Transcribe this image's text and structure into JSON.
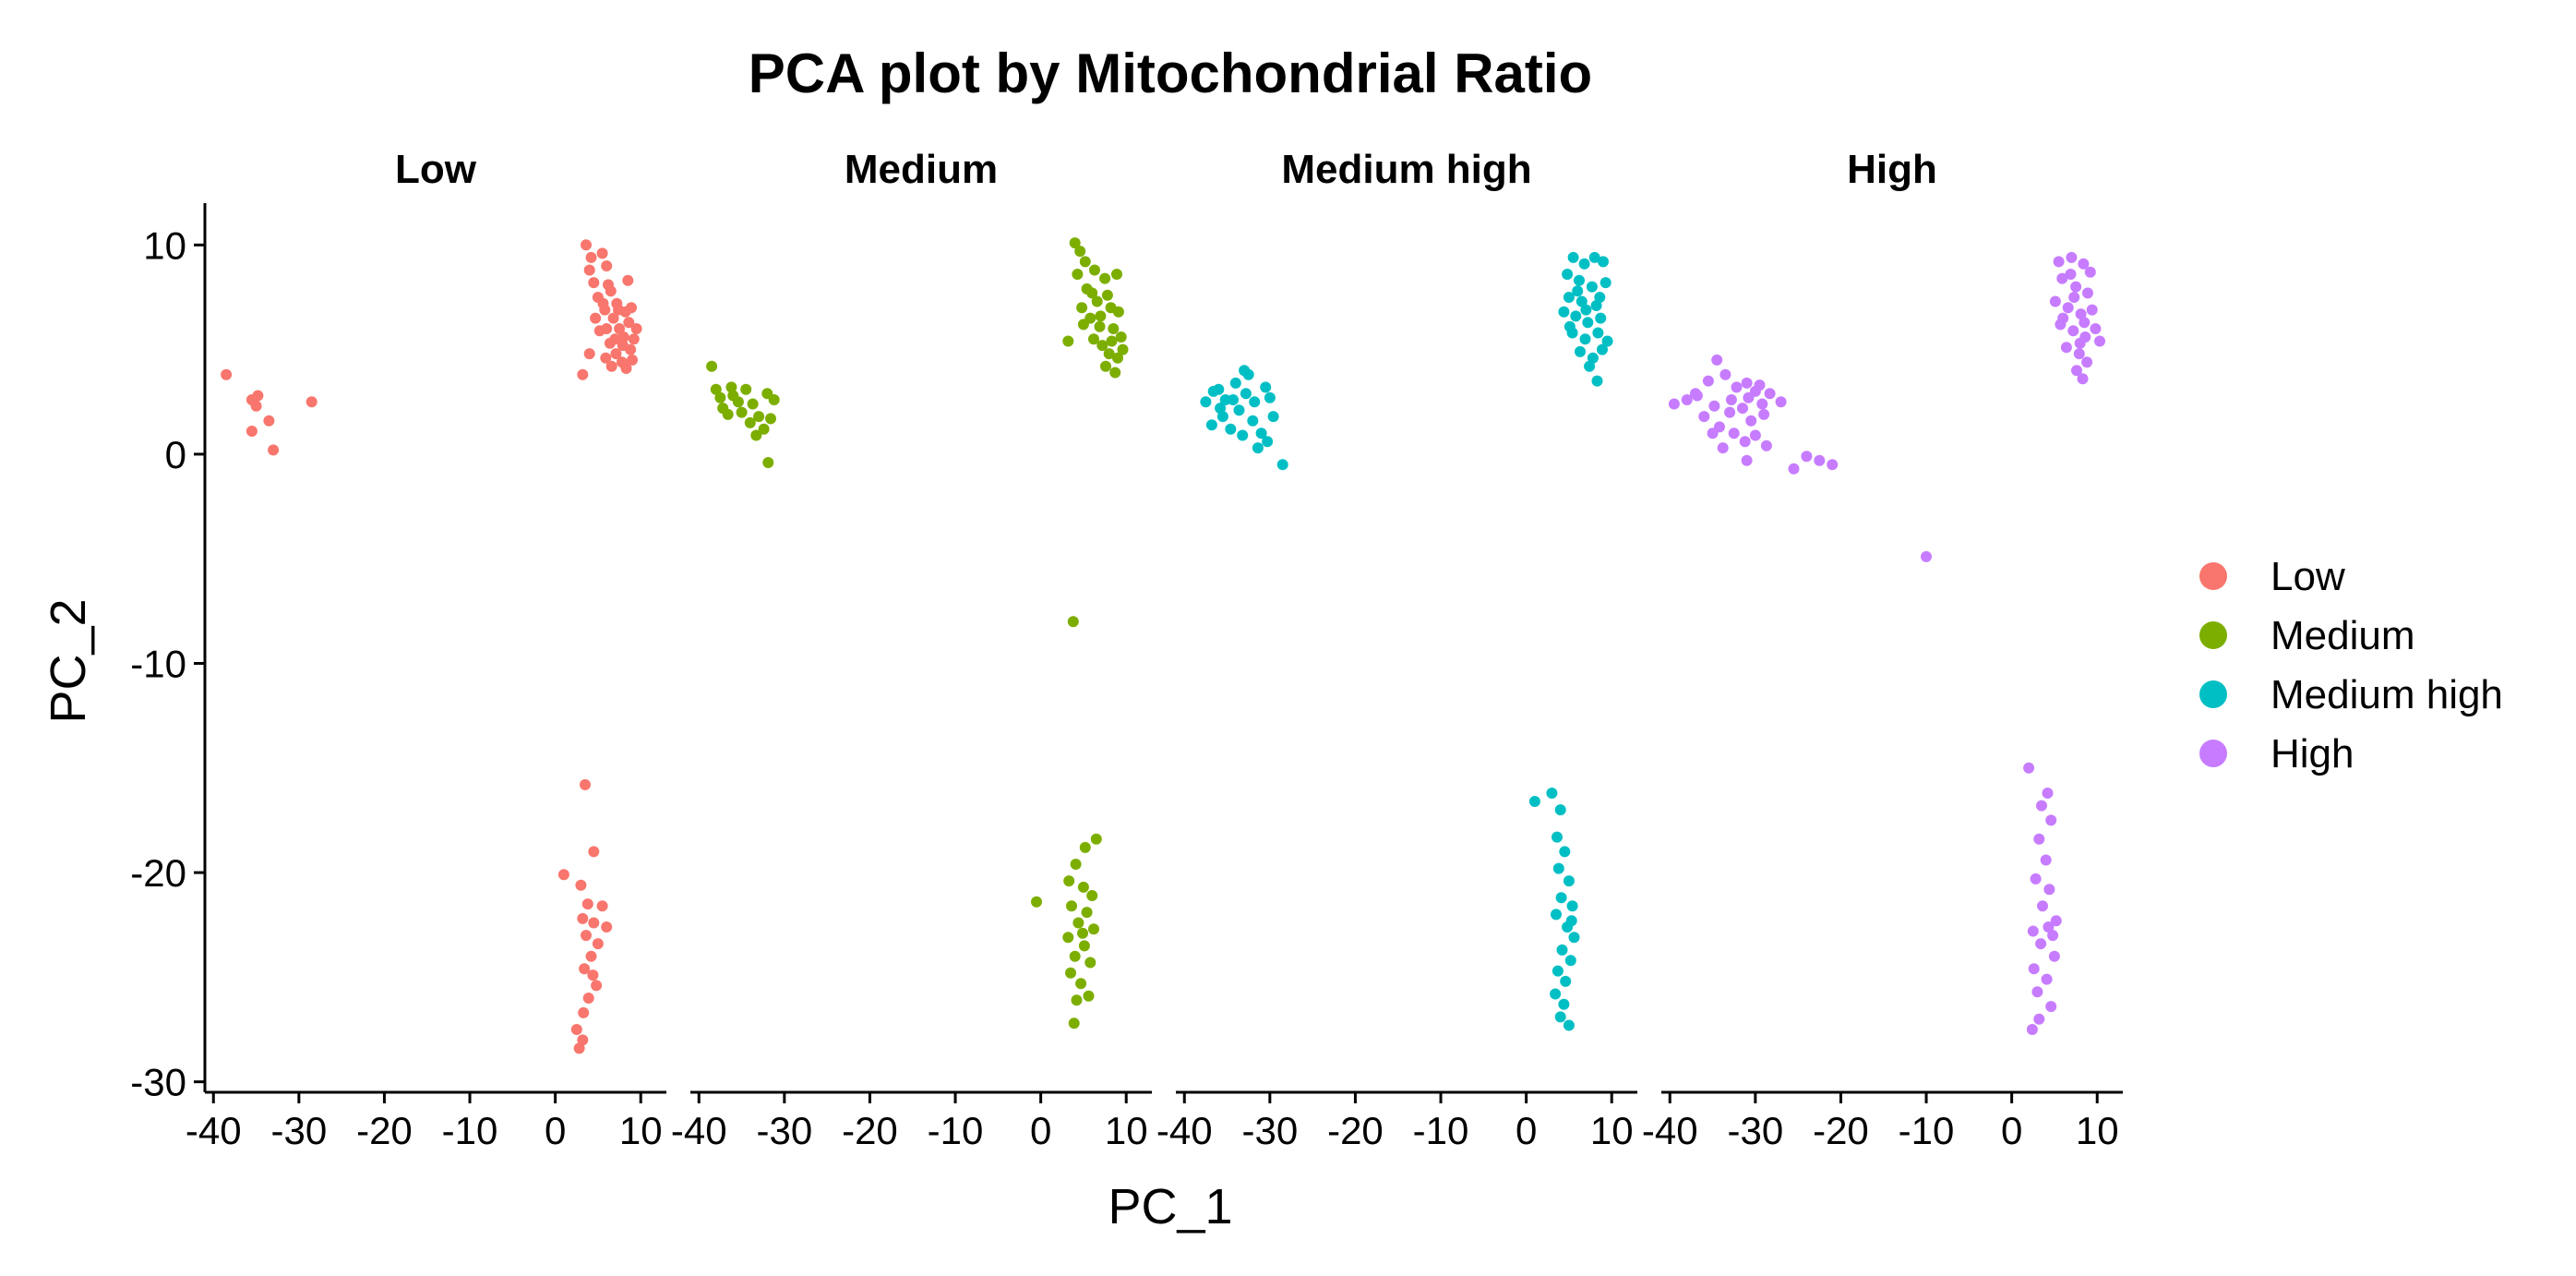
{
  "chart_data": {
    "type": "scatter",
    "title": "PCA plot by Mitochondrial Ratio",
    "xlabel": "PC_1",
    "ylabel": "PC_2",
    "xlim": [
      -41,
      13
    ],
    "ylim": [
      -30.5,
      12
    ],
    "xticks": [
      -40,
      -30,
      -20,
      -10,
      0,
      10
    ],
    "yticks": [
      10,
      0,
      -10,
      -20,
      -30
    ],
    "grid": false,
    "legend_position": "right",
    "facets": [
      {
        "name": "Low",
        "color": "#F8766D",
        "points": [
          [
            -38.5,
            3.8
          ],
          [
            -35.5,
            2.6
          ],
          [
            -35,
            2.3
          ],
          [
            -34.8,
            2.8
          ],
          [
            -35.5,
            1.1
          ],
          [
            -33.5,
            1.6
          ],
          [
            -33,
            0.2
          ],
          [
            -28.5,
            2.5
          ],
          [
            3.6,
            10.0
          ],
          [
            4.2,
            9.4
          ],
          [
            4.0,
            8.8
          ],
          [
            5.5,
            9.6
          ],
          [
            6.0,
            9.0
          ],
          [
            4.5,
            8.2
          ],
          [
            5.0,
            7.5
          ],
          [
            6.5,
            7.8
          ],
          [
            7.2,
            7.2
          ],
          [
            8.5,
            8.3
          ],
          [
            5.8,
            6.9
          ],
          [
            6.8,
            6.5
          ],
          [
            7.5,
            6.0
          ],
          [
            8.0,
            5.6
          ],
          [
            8.8,
            5.0
          ],
          [
            9.2,
            5.5
          ],
          [
            6.4,
            5.3
          ],
          [
            7.1,
            4.8
          ],
          [
            7.8,
            4.4
          ],
          [
            8.3,
            4.1
          ],
          [
            6.0,
            6.0
          ],
          [
            7.4,
            6.9
          ],
          [
            8.6,
            6.3
          ],
          [
            9.5,
            6.0
          ],
          [
            5.2,
            5.9
          ],
          [
            4.0,
            4.8
          ],
          [
            3.2,
            3.8
          ],
          [
            6.6,
            4.2
          ],
          [
            9.0,
            4.5
          ],
          [
            5.6,
            7.2
          ],
          [
            7.9,
            5.2
          ],
          [
            8.9,
            7.0
          ],
          [
            4.7,
            6.5
          ],
          [
            6.2,
            8.1
          ],
          [
            7.0,
            5.5
          ],
          [
            5.9,
            4.6
          ],
          [
            8.2,
            6.8
          ],
          [
            3.5,
            -15.8
          ],
          [
            4.5,
            -19.0
          ],
          [
            1.0,
            -20.1
          ],
          [
            3.0,
            -20.6
          ],
          [
            3.8,
            -21.5
          ],
          [
            5.5,
            -21.6
          ],
          [
            3.2,
            -22.2
          ],
          [
            4.5,
            -22.4
          ],
          [
            6.0,
            -22.6
          ],
          [
            3.6,
            -23.0
          ],
          [
            5.0,
            -23.4
          ],
          [
            4.2,
            -24.0
          ],
          [
            3.4,
            -24.6
          ],
          [
            4.8,
            -25.4
          ],
          [
            3.9,
            -26.0
          ],
          [
            3.3,
            -26.7
          ],
          [
            2.5,
            -27.5
          ],
          [
            3.2,
            -28.0
          ],
          [
            2.8,
            -28.4
          ],
          [
            4.4,
            -24.9
          ]
        ]
      },
      {
        "name": "Medium",
        "color": "#7CAE00",
        "points": [
          [
            -38.5,
            4.2
          ],
          [
            -38.0,
            3.1
          ],
          [
            -37.2,
            2.2
          ],
          [
            -36.0,
            2.8
          ],
          [
            -35.4,
            2.5
          ],
          [
            -34.5,
            3.1
          ],
          [
            -33.7,
            2.4
          ],
          [
            -33.0,
            1.8
          ],
          [
            -32.0,
            2.9
          ],
          [
            -31.2,
            2.6
          ],
          [
            -31.6,
            1.7
          ],
          [
            -34.0,
            1.5
          ],
          [
            -36.6,
            1.9
          ],
          [
            -35.0,
            2.0
          ],
          [
            -32.4,
            1.2
          ],
          [
            -31.9,
            -0.4
          ],
          [
            -33.3,
            0.9
          ],
          [
            -37.5,
            2.7
          ],
          [
            -36.2,
            3.2
          ],
          [
            4.0,
            10.1
          ],
          [
            4.6,
            9.7
          ],
          [
            5.2,
            9.2
          ],
          [
            4.3,
            8.6
          ],
          [
            6.3,
            8.8
          ],
          [
            7.5,
            8.4
          ],
          [
            8.9,
            8.6
          ],
          [
            5.4,
            7.9
          ],
          [
            6.6,
            7.3
          ],
          [
            7.8,
            7.6
          ],
          [
            8.2,
            7.0
          ],
          [
            9.1,
            6.8
          ],
          [
            5.8,
            6.5
          ],
          [
            6.9,
            6.1
          ],
          [
            8.5,
            6.0
          ],
          [
            9.4,
            5.6
          ],
          [
            6.2,
            5.5
          ],
          [
            7.2,
            5.2
          ],
          [
            8.0,
            4.8
          ],
          [
            9.0,
            4.6
          ],
          [
            7.6,
            4.2
          ],
          [
            8.7,
            3.9
          ],
          [
            3.2,
            5.4
          ],
          [
            5.0,
            6.2
          ],
          [
            6.0,
            7.7
          ],
          [
            7.0,
            6.6
          ],
          [
            8.3,
            5.4
          ],
          [
            9.6,
            5.0
          ],
          [
            4.8,
            7.0
          ],
          [
            3.8,
            -8.0
          ],
          [
            6.5,
            -18.4
          ],
          [
            5.2,
            -18.8
          ],
          [
            4.1,
            -19.6
          ],
          [
            3.3,
            -20.4
          ],
          [
            5.0,
            -20.7
          ],
          [
            6.0,
            -21.1
          ],
          [
            -0.5,
            -21.4
          ],
          [
            3.6,
            -21.6
          ],
          [
            5.4,
            -21.9
          ],
          [
            4.4,
            -22.4
          ],
          [
            6.2,
            -22.7
          ],
          [
            3.2,
            -23.1
          ],
          [
            5.1,
            -23.5
          ],
          [
            4.0,
            -24.0
          ],
          [
            5.8,
            -24.3
          ],
          [
            3.5,
            -24.8
          ],
          [
            4.7,
            -25.3
          ],
          [
            5.6,
            -25.9
          ],
          [
            4.2,
            -26.1
          ],
          [
            3.9,
            -27.2
          ],
          [
            4.9,
            -22.9
          ]
        ]
      },
      {
        "name": "Medium high",
        "color": "#00BFC4",
        "points": [
          [
            -37.5,
            2.5
          ],
          [
            -36.6,
            3.0
          ],
          [
            -35.2,
            2.6
          ],
          [
            -34.0,
            3.4
          ],
          [
            -33.0,
            4.0
          ],
          [
            -32.5,
            3.8
          ],
          [
            -31.8,
            2.5
          ],
          [
            -30.5,
            3.2
          ],
          [
            -30.0,
            2.7
          ],
          [
            -33.6,
            2.1
          ],
          [
            -35.5,
            1.8
          ],
          [
            -36.8,
            1.4
          ],
          [
            -34.6,
            1.2
          ],
          [
            -32.0,
            1.6
          ],
          [
            -31.0,
            1.0
          ],
          [
            -30.3,
            0.6
          ],
          [
            -28.5,
            -0.5
          ],
          [
            -31.4,
            0.3
          ],
          [
            -33.2,
            0.9
          ],
          [
            -35.8,
            2.2
          ],
          [
            -32.8,
            2.9
          ],
          [
            -34.3,
            2.6
          ],
          [
            -36.0,
            3.1
          ],
          [
            -29.6,
            1.8
          ],
          [
            5.5,
            9.4
          ],
          [
            6.8,
            9.1
          ],
          [
            8.0,
            9.4
          ],
          [
            9.0,
            9.2
          ],
          [
            4.8,
            8.6
          ],
          [
            6.2,
            8.3
          ],
          [
            7.7,
            8.0
          ],
          [
            9.3,
            8.2
          ],
          [
            5.0,
            7.5
          ],
          [
            6.5,
            7.3
          ],
          [
            8.2,
            7.1
          ],
          [
            4.4,
            6.8
          ],
          [
            5.8,
            6.6
          ],
          [
            7.2,
            6.3
          ],
          [
            8.7,
            6.5
          ],
          [
            5.4,
            5.8
          ],
          [
            6.9,
            5.5
          ],
          [
            8.4,
            5.8
          ],
          [
            9.5,
            5.4
          ],
          [
            6.3,
            4.9
          ],
          [
            7.8,
            4.6
          ],
          [
            8.9,
            5.0
          ],
          [
            7.4,
            4.2
          ],
          [
            8.3,
            3.5
          ],
          [
            5.1,
            6.1
          ],
          [
            6.0,
            7.8
          ],
          [
            7.0,
            6.9
          ],
          [
            8.6,
            7.5
          ],
          [
            1.0,
            -16.6
          ],
          [
            3.0,
            -16.2
          ],
          [
            4.0,
            -17.0
          ],
          [
            3.6,
            -18.3
          ],
          [
            4.5,
            -19.0
          ],
          [
            3.8,
            -19.8
          ],
          [
            5.0,
            -20.4
          ],
          [
            4.1,
            -21.2
          ],
          [
            5.4,
            -21.6
          ],
          [
            3.5,
            -22.0
          ],
          [
            4.8,
            -22.6
          ],
          [
            5.6,
            -23.1
          ],
          [
            4.2,
            -23.7
          ],
          [
            5.2,
            -24.2
          ],
          [
            3.7,
            -24.7
          ],
          [
            4.6,
            -25.2
          ],
          [
            3.4,
            -25.8
          ],
          [
            4.4,
            -26.3
          ],
          [
            5.0,
            -27.3
          ],
          [
            4.0,
            -26.9
          ],
          [
            5.3,
            -22.3
          ]
        ]
      },
      {
        "name": "High",
        "color": "#C77CFF",
        "points": [
          [
            -39.5,
            2.4
          ],
          [
            -38.0,
            2.6
          ],
          [
            -37.0,
            2.9
          ],
          [
            -35.5,
            3.5
          ],
          [
            -34.5,
            4.5
          ],
          [
            -33.5,
            3.8
          ],
          [
            -32.2,
            3.2
          ],
          [
            -31.0,
            3.4
          ],
          [
            -30.0,
            3.0
          ],
          [
            -29.5,
            3.3
          ],
          [
            -28.3,
            2.9
          ],
          [
            -27.0,
            2.5
          ],
          [
            -34.8,
            2.3
          ],
          [
            -33.0,
            2.0
          ],
          [
            -31.5,
            2.2
          ],
          [
            -30.5,
            1.6
          ],
          [
            -29.0,
            1.9
          ],
          [
            -36.0,
            1.8
          ],
          [
            -34.2,
            1.3
          ],
          [
            -32.5,
            1.0
          ],
          [
            -31.2,
            0.6
          ],
          [
            -30.0,
            0.9
          ],
          [
            -28.7,
            0.4
          ],
          [
            -33.8,
            0.3
          ],
          [
            -31.0,
            -0.3
          ],
          [
            -25.5,
            -0.7
          ],
          [
            -24.0,
            -0.1
          ],
          [
            -22.5,
            -0.3
          ],
          [
            -21.0,
            -0.5
          ],
          [
            -36.8,
            2.8
          ],
          [
            -30.8,
            2.7
          ],
          [
            -32.8,
            2.6
          ],
          [
            -35.0,
            1.0
          ],
          [
            -29.2,
            2.4
          ],
          [
            -10.0,
            -4.9
          ],
          [
            5.5,
            9.2
          ],
          [
            7.0,
            9.4
          ],
          [
            8.4,
            9.1
          ],
          [
            9.2,
            8.7
          ],
          [
            5.9,
            8.4
          ],
          [
            7.5,
            8.0
          ],
          [
            8.9,
            7.7
          ],
          [
            5.1,
            7.3
          ],
          [
            6.6,
            7.0
          ],
          [
            8.1,
            6.7
          ],
          [
            9.4,
            6.9
          ],
          [
            5.7,
            6.2
          ],
          [
            7.2,
            5.9
          ],
          [
            8.6,
            5.6
          ],
          [
            10.3,
            5.4
          ],
          [
            6.4,
            5.1
          ],
          [
            7.9,
            4.8
          ],
          [
            8.8,
            4.4
          ],
          [
            7.6,
            4.0
          ],
          [
            8.3,
            3.6
          ],
          [
            6.0,
            6.5
          ],
          [
            7.3,
            7.5
          ],
          [
            8.5,
            6.3
          ],
          [
            9.8,
            6.0
          ],
          [
            6.9,
            8.6
          ],
          [
            8.0,
            5.3
          ],
          [
            2.0,
            -15.0
          ],
          [
            4.2,
            -16.2
          ],
          [
            3.5,
            -16.8
          ],
          [
            4.6,
            -17.5
          ],
          [
            3.2,
            -18.4
          ],
          [
            4.0,
            -19.4
          ],
          [
            2.8,
            -20.3
          ],
          [
            4.4,
            -20.8
          ],
          [
            3.6,
            -21.6
          ],
          [
            5.2,
            -22.3
          ],
          [
            2.5,
            -22.8
          ],
          [
            4.8,
            -23.0
          ],
          [
            3.4,
            -23.4
          ],
          [
            5.0,
            -24.0
          ],
          [
            2.6,
            -24.6
          ],
          [
            4.1,
            -25.1
          ],
          [
            3.0,
            -25.7
          ],
          [
            4.6,
            -26.4
          ],
          [
            3.2,
            -27.0
          ],
          [
            2.4,
            -27.5
          ],
          [
            4.3,
            -22.6
          ]
        ]
      }
    ]
  }
}
